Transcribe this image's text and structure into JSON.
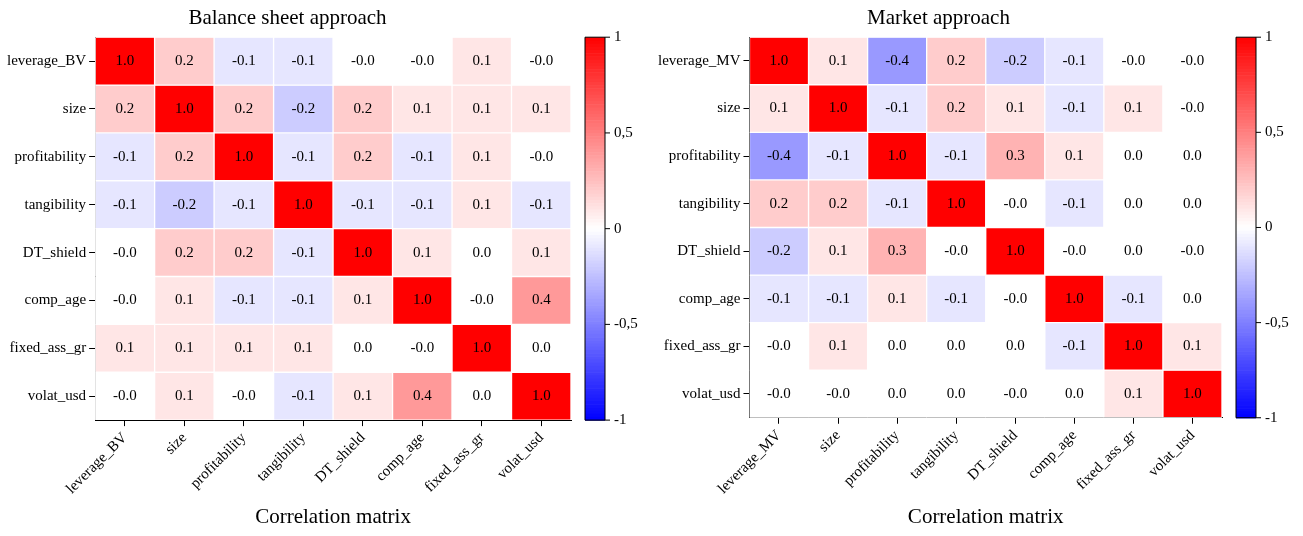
{
  "chart_data": [
    {
      "type": "heatmap",
      "title": "Balance sheet approach",
      "xlabel": "Correlation matrix",
      "categories": [
        "leverage_BV",
        "size",
        "profitability",
        "tangibility",
        "DT_shield",
        "comp_age",
        "fixed_ass_gr",
        "volat_usd"
      ],
      "y_categories": [
        "leverage_BV",
        "size",
        "profitability",
        "tangibility",
        "DT_shield",
        "comp_age",
        "fixed_ass_gr",
        "volat_usd"
      ],
      "cells": [
        [
          1.0,
          0.2,
          -0.1,
          -0.1,
          -0.0,
          -0.0,
          0.1,
          -0.0
        ],
        [
          0.2,
          1.0,
          0.2,
          -0.2,
          0.2,
          0.1,
          0.1,
          0.1
        ],
        [
          -0.1,
          0.2,
          1.0,
          -0.1,
          0.2,
          -0.1,
          0.1,
          -0.0
        ],
        [
          -0.1,
          -0.2,
          -0.1,
          1.0,
          -0.1,
          -0.1,
          0.1,
          -0.1
        ],
        [
          -0.0,
          0.2,
          0.2,
          -0.1,
          1.0,
          0.1,
          0.0,
          0.1
        ],
        [
          -0.0,
          0.1,
          -0.1,
          -0.1,
          0.1,
          1.0,
          -0.0,
          0.4
        ],
        [
          0.1,
          0.1,
          0.1,
          0.1,
          0.0,
          -0.0,
          1.0,
          0.0
        ],
        [
          -0.0,
          0.1,
          -0.0,
          -0.1,
          0.1,
          0.4,
          0.0,
          1.0
        ]
      ],
      "cell_labels": [
        [
          "1.0",
          "0.2",
          "-0.1",
          "-0.1",
          "-0.0",
          "-0.0",
          "0.1",
          "-0.0"
        ],
        [
          "0.2",
          "1.0",
          "0.2",
          "-0.2",
          "0.2",
          "0.1",
          "0.1",
          "0.1"
        ],
        [
          "-0.1",
          "0.2",
          "1.0",
          "-0.1",
          "0.2",
          "-0.1",
          "0.1",
          "-0.0"
        ],
        [
          "-0.1",
          "-0.2",
          "-0.1",
          "1.0",
          "-0.1",
          "-0.1",
          "0.1",
          "-0.1"
        ],
        [
          "-0.0",
          "0.2",
          "0.2",
          "-0.1",
          "1.0",
          "0.1",
          "0.0",
          "0.1"
        ],
        [
          "-0.0",
          "0.1",
          "-0.1",
          "-0.1",
          "0.1",
          "1.0",
          "-0.0",
          "0.4"
        ],
        [
          "0.1",
          "0.1",
          "0.1",
          "0.1",
          "0.0",
          "-0.0",
          "1.0",
          "0.0"
        ],
        [
          "-0.0",
          "0.1",
          "-0.0",
          "-0.1",
          "0.1",
          "0.4",
          "0.0",
          "1.0"
        ]
      ],
      "clim": [
        -1,
        1
      ],
      "cticks": [
        {
          "value": -1,
          "label": "-1"
        },
        {
          "value": -0.5,
          "label": "-0,5"
        },
        {
          "value": 0,
          "label": "0"
        },
        {
          "value": 0.5,
          "label": "0,5"
        },
        {
          "value": 1,
          "label": "1"
        }
      ]
    },
    {
      "type": "heatmap",
      "title": "Market approach",
      "xlabel": "Correlation matrix",
      "categories": [
        "leverage_MV",
        "size",
        "profitability",
        "tangibility",
        "DT_shield",
        "comp_age",
        "fixed_ass_gr",
        "volat_usd"
      ],
      "y_categories": [
        "leverage_MV",
        "size",
        "profitability",
        "tangibility",
        "DT_shield",
        "comp_age",
        "fixed_ass_gr",
        "volat_usd"
      ],
      "cells": [
        [
          1.0,
          0.1,
          -0.4,
          0.2,
          -0.2,
          -0.1,
          -0.0,
          -0.0
        ],
        [
          0.1,
          1.0,
          -0.1,
          0.2,
          0.1,
          -0.1,
          0.1,
          -0.0
        ],
        [
          -0.4,
          -0.1,
          1.0,
          -0.1,
          0.3,
          0.1,
          0.0,
          0.0
        ],
        [
          0.2,
          0.2,
          -0.1,
          1.0,
          -0.0,
          -0.1,
          0.0,
          0.0
        ],
        [
          -0.2,
          0.1,
          0.3,
          -0.0,
          1.0,
          -0.0,
          0.0,
          -0.0
        ],
        [
          -0.1,
          -0.1,
          0.1,
          -0.1,
          -0.0,
          1.0,
          -0.1,
          0.0
        ],
        [
          -0.0,
          0.1,
          0.0,
          0.0,
          0.0,
          -0.1,
          1.0,
          0.1
        ],
        [
          -0.0,
          -0.0,
          0.0,
          0.0,
          -0.0,
          0.0,
          0.1,
          1.0
        ]
      ],
      "cell_labels": [
        [
          "1.0",
          "0.1",
          "-0.4",
          "0.2",
          "-0.2",
          "-0.1",
          "-0.0",
          "-0.0"
        ],
        [
          "0.1",
          "1.0",
          "-0.1",
          "0.2",
          "0.1",
          "-0.1",
          "0.1",
          "-0.0"
        ],
        [
          "-0.4",
          "-0.1",
          "1.0",
          "-0.1",
          "0.3",
          "0.1",
          "0.0",
          "0.0"
        ],
        [
          "0.2",
          "0.2",
          "-0.1",
          "1.0",
          "-0.0",
          "-0.1",
          "0.0",
          "0.0"
        ],
        [
          "-0.2",
          "0.1",
          "0.3",
          "-0.0",
          "1.0",
          "-0.0",
          "0.0",
          "-0.0"
        ],
        [
          "-0.1",
          "-0.1",
          "0.1",
          "-0.1",
          "-0.0",
          "1.0",
          "-0.1",
          "0.0"
        ],
        [
          "-0.0",
          "0.1",
          "0.0",
          "0.0",
          "0.0",
          "-0.1",
          "1.0",
          "0.1"
        ],
        [
          "-0.0",
          "-0.0",
          "0.0",
          "0.0",
          "-0.0",
          "0.0",
          "0.1",
          "1.0"
        ]
      ],
      "clim": [
        -1,
        1
      ],
      "cticks": [
        {
          "value": -1,
          "label": "-1"
        },
        {
          "value": -0.5,
          "label": "-0,5"
        },
        {
          "value": 0,
          "label": "0"
        },
        {
          "value": 0.5,
          "label": "0,5"
        },
        {
          "value": 1,
          "label": "1"
        }
      ]
    }
  ]
}
